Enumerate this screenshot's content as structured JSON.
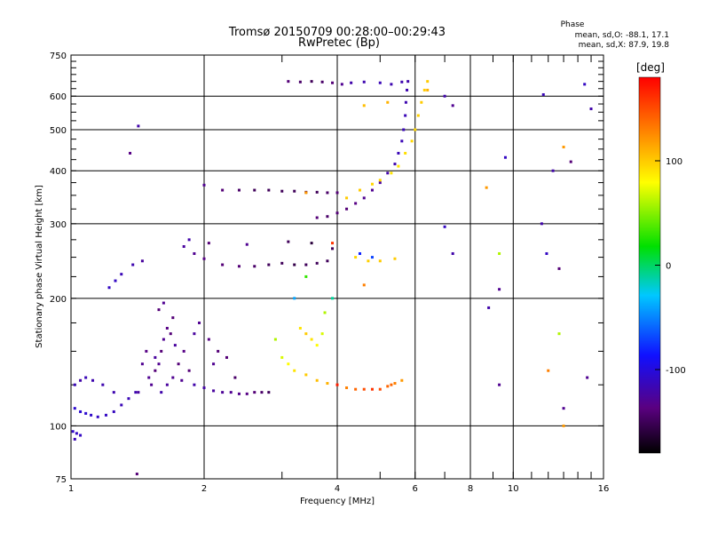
{
  "chart_data": {
    "type": "scatter",
    "title": "Tromsø 20150709 00:28:00–00:29:43",
    "subtitle": "RwPretec (Bp)",
    "xlabel": "Frequency [MHz]",
    "ylabel": "Stationary phase Virtual Height [km]",
    "x_scale": "log",
    "y_scale": "log",
    "xlim": [
      1,
      16
    ],
    "ylim": [
      75,
      750
    ],
    "x_ticks": [
      1,
      2,
      4,
      6,
      8,
      10,
      16
    ],
    "x_minor_ticks": [
      3,
      5,
      7,
      9
    ],
    "y_ticks": [
      75,
      100,
      200,
      300,
      400,
      500,
      600,
      750
    ],
    "grid": true,
    "phase_info": {
      "heading": "Phase",
      "line_o": "mean, sd,O: -88.1, 17.1",
      "line_x": "mean, sd,X: 87.9, 19.8"
    },
    "colorbar": {
      "label": "[deg]",
      "range": [
        -180,
        180
      ],
      "ticks": [
        100,
        0,
        -100
      ]
    },
    "series": [
      {
        "points": [
          [
            1.02,
            125,
            -115
          ],
          [
            1.05,
            128,
            -120
          ],
          [
            1.08,
            130,
            -115
          ],
          [
            1.12,
            128,
            -118
          ],
          [
            1.18,
            125,
            -118
          ],
          [
            1.25,
            120,
            -118
          ],
          [
            1.02,
            110,
            -105
          ],
          [
            1.05,
            108,
            -105
          ],
          [
            1.08,
            107,
            -105
          ],
          [
            1.11,
            106,
            -108
          ],
          [
            1.15,
            105,
            -110
          ],
          [
            1.2,
            106,
            -110
          ],
          [
            1.25,
            108,
            -112
          ],
          [
            1.3,
            112,
            -115
          ],
          [
            1.35,
            116,
            -115
          ],
          [
            1.4,
            120,
            -118
          ],
          [
            1.01,
            97,
            -108
          ],
          [
            1.03,
            96,
            -110
          ],
          [
            1.05,
            95,
            -110
          ],
          [
            1.02,
            93,
            -115
          ],
          [
            1.22,
            212,
            -110
          ],
          [
            1.26,
            220,
            -110
          ],
          [
            1.3,
            228,
            -115
          ],
          [
            1.38,
            240,
            -118
          ],
          [
            1.45,
            245,
            -125
          ],
          [
            1.42,
            510,
            -120
          ],
          [
            1.36,
            440,
            -135
          ],
          [
            1.41,
            77,
            -140
          ]
        ]
      },
      {
        "points": [
          [
            1.5,
            130,
            -130
          ],
          [
            1.55,
            135,
            -140
          ],
          [
            1.58,
            140,
            -130
          ],
          [
            1.6,
            150,
            -140
          ],
          [
            1.62,
            160,
            -130
          ],
          [
            1.65,
            170,
            -135
          ],
          [
            1.7,
            180,
            -140
          ],
          [
            1.52,
            125,
            -130
          ],
          [
            1.55,
            145,
            -125
          ],
          [
            1.48,
            150,
            -135
          ],
          [
            1.6,
            120,
            -120
          ],
          [
            1.65,
            125,
            -125
          ],
          [
            1.7,
            130,
            -130
          ],
          [
            1.75,
            140,
            -140
          ],
          [
            1.8,
            150,
            -135
          ],
          [
            1.68,
            165,
            -140
          ],
          [
            1.72,
            155,
            -125
          ],
          [
            1.78,
            128,
            -130
          ],
          [
            1.85,
            135,
            -140
          ],
          [
            1.45,
            140,
            -130
          ],
          [
            1.42,
            120,
            -125
          ],
          [
            1.58,
            188,
            -140
          ],
          [
            1.62,
            195,
            -130
          ],
          [
            1.9,
            125,
            -120
          ],
          [
            2.0,
            123,
            -122
          ],
          [
            2.1,
            121,
            -125
          ],
          [
            2.2,
            120,
            -128
          ],
          [
            2.3,
            120,
            -130
          ],
          [
            2.4,
            119,
            -132
          ],
          [
            2.5,
            119,
            -135
          ],
          [
            2.6,
            120,
            -140
          ],
          [
            2.7,
            120,
            -145
          ],
          [
            2.8,
            120,
            -150
          ],
          [
            1.95,
            175,
            -130
          ],
          [
            2.05,
            160,
            -135
          ],
          [
            2.15,
            150,
            -140
          ],
          [
            2.1,
            140,
            -130
          ],
          [
            1.9,
            165,
            -125
          ],
          [
            2.25,
            145,
            -140
          ],
          [
            2.35,
            130,
            -145
          ]
        ]
      },
      {
        "points": [
          [
            1.8,
            265,
            -125
          ],
          [
            1.9,
            255,
            -130
          ],
          [
            2.0,
            248,
            -135
          ],
          [
            2.2,
            240,
            -140
          ],
          [
            2.4,
            238,
            -140
          ],
          [
            2.6,
            238,
            -145
          ],
          [
            2.8,
            240,
            -150
          ],
          [
            3.0,
            242,
            -150
          ],
          [
            3.2,
            240,
            -155
          ],
          [
            3.4,
            240,
            -150
          ],
          [
            3.6,
            242,
            -150
          ],
          [
            3.8,
            245,
            -150
          ],
          [
            1.85,
            275,
            -120
          ],
          [
            2.05,
            270,
            -140
          ],
          [
            2.5,
            268,
            -130
          ],
          [
            3.1,
            272,
            -150
          ],
          [
            3.5,
            270,
            -160
          ],
          [
            3.9,
            262,
            -150
          ],
          [
            4.5,
            255,
            -80
          ],
          [
            4.8,
            250,
            -70
          ]
        ]
      },
      {
        "points": [
          [
            2.0,
            370,
            -130
          ],
          [
            2.2,
            360,
            -140
          ],
          [
            2.4,
            360,
            -145
          ],
          [
            2.6,
            360,
            -150
          ],
          [
            2.8,
            360,
            -150
          ],
          [
            3.0,
            358,
            -150
          ],
          [
            3.2,
            358,
            -150
          ],
          [
            3.4,
            356,
            -150
          ],
          [
            3.6,
            356,
            -150
          ],
          [
            3.8,
            355,
            -145
          ],
          [
            4.0,
            355,
            -140
          ]
        ]
      },
      {
        "points": [
          [
            3.6,
            310,
            -140
          ],
          [
            3.8,
            312,
            -145
          ],
          [
            4.0,
            318,
            -140
          ],
          [
            4.2,
            325,
            -140
          ],
          [
            4.4,
            335,
            -135
          ],
          [
            4.6,
            345,
            -130
          ],
          [
            4.8,
            360,
            -130
          ],
          [
            5.0,
            375,
            -125
          ],
          [
            5.2,
            395,
            -120
          ],
          [
            5.4,
            415,
            -118
          ],
          [
            5.5,
            440,
            -115
          ],
          [
            5.6,
            470,
            -115
          ],
          [
            5.65,
            500,
            -115
          ],
          [
            5.7,
            540,
            -115
          ],
          [
            5.72,
            580,
            -118
          ],
          [
            5.75,
            620,
            -118
          ],
          [
            5.78,
            650,
            -120
          ]
        ]
      },
      {
        "points": [
          [
            3.1,
            650,
            -140
          ],
          [
            3.3,
            648,
            -145
          ],
          [
            3.5,
            650,
            -150
          ],
          [
            3.7,
            648,
            -145
          ],
          [
            3.9,
            645,
            -140
          ],
          [
            4.1,
            640,
            -130
          ],
          [
            4.3,
            645,
            -120
          ],
          [
            4.6,
            648,
            -118
          ],
          [
            5.0,
            645,
            -115
          ],
          [
            5.3,
            640,
            -118
          ],
          [
            5.6,
            648,
            -118
          ]
        ]
      },
      {
        "points": [
          [
            2.9,
            160,
            60
          ],
          [
            3.0,
            145,
            70
          ],
          [
            3.1,
            140,
            80
          ],
          [
            3.2,
            135,
            90
          ],
          [
            3.4,
            132,
            100
          ],
          [
            3.6,
            128,
            105
          ],
          [
            3.8,
            126,
            110
          ],
          [
            4.0,
            125,
            115
          ],
          [
            4.2,
            123,
            130
          ],
          [
            4.4,
            122,
            140
          ],
          [
            4.6,
            122,
            150
          ],
          [
            4.8,
            122,
            160
          ],
          [
            5.0,
            122,
            150
          ],
          [
            5.2,
            124,
            140
          ],
          [
            5.4,
            126,
            130
          ],
          [
            5.6,
            128,
            120
          ],
          [
            3.3,
            170,
            90
          ],
          [
            3.4,
            165,
            100
          ],
          [
            3.5,
            160,
            90
          ],
          [
            3.6,
            155,
            80
          ],
          [
            3.7,
            165,
            70
          ],
          [
            3.75,
            185,
            60
          ]
        ]
      },
      {
        "points": [
          [
            4.2,
            345,
            100
          ],
          [
            4.5,
            360,
            100
          ],
          [
            4.8,
            372,
            95
          ],
          [
            5.0,
            380,
            95
          ],
          [
            5.3,
            395,
            90
          ],
          [
            5.5,
            410,
            90
          ],
          [
            5.7,
            440,
            92
          ],
          [
            5.9,
            470,
            95
          ],
          [
            6.0,
            500,
            95
          ],
          [
            6.1,
            540,
            98
          ],
          [
            6.2,
            580,
            100
          ],
          [
            6.3,
            620,
            100
          ],
          [
            6.4,
            650,
            100
          ],
          [
            4.4,
            250,
            95
          ],
          [
            4.7,
            245,
            98
          ],
          [
            5.0,
            245,
            100
          ],
          [
            5.4,
            248,
            100
          ],
          [
            4.6,
            570,
            105
          ],
          [
            5.2,
            580,
            110
          ],
          [
            6.4,
            620,
            110
          ]
        ]
      },
      {
        "points": [
          [
            3.4,
            355,
            120
          ],
          [
            3.9,
            270,
            160
          ],
          [
            4.0,
            125,
            170
          ],
          [
            3.2,
            200,
            -40
          ],
          [
            3.4,
            225,
            30
          ],
          [
            3.9,
            200,
            -10
          ],
          [
            4.6,
            215,
            130
          ],
          [
            5.3,
            125,
            140
          ],
          [
            7.3,
            255,
            -120
          ],
          [
            7.0,
            295,
            -110
          ],
          [
            7.0,
            600,
            -120
          ],
          [
            7.3,
            570,
            -130
          ],
          [
            8.7,
            365,
            120
          ],
          [
            8.8,
            190,
            -120
          ],
          [
            9.3,
            255,
            60
          ],
          [
            9.3,
            210,
            -130
          ],
          [
            9.3,
            125,
            -130
          ],
          [
            9.6,
            430,
            -110
          ],
          [
            11.7,
            605,
            -115
          ],
          [
            11.9,
            255,
            -110
          ],
          [
            12.7,
            235,
            -140
          ],
          [
            12.7,
            165,
            60
          ],
          [
            13.0,
            110,
            -130
          ],
          [
            13.0,
            100,
            120
          ],
          [
            13.0,
            455,
            120
          ],
          [
            13.5,
            420,
            -140
          ],
          [
            14.5,
            640,
            -110
          ],
          [
            14.7,
            130,
            -130
          ],
          [
            15.0,
            560,
            -120
          ],
          [
            12.3,
            400,
            -120
          ],
          [
            12.0,
            135,
            130
          ],
          [
            11.6,
            300,
            -120
          ]
        ]
      }
    ]
  }
}
